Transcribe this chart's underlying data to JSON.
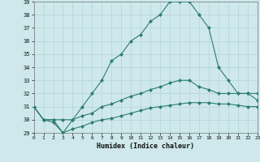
{
  "xlabel": "Humidex (Indice chaleur)",
  "x": [
    0,
    1,
    2,
    3,
    4,
    5,
    6,
    7,
    8,
    9,
    10,
    11,
    12,
    13,
    14,
    15,
    16,
    17,
    18,
    19,
    20,
    21,
    22,
    23
  ],
  "line_max": [
    31,
    30,
    30,
    29,
    30,
    31,
    32,
    33,
    34.5,
    35,
    36,
    36.5,
    37.5,
    38,
    39,
    39,
    39,
    38,
    37,
    34,
    33,
    32,
    32,
    32
  ],
  "line_mid": [
    31,
    30,
    30,
    30,
    30,
    30.3,
    30.5,
    31,
    31.2,
    31.5,
    31.8,
    32,
    32.3,
    32.5,
    32.8,
    33,
    33,
    32.5,
    32.3,
    32,
    32,
    32,
    32,
    31.5
  ],
  "line_min": [
    31,
    30,
    29.8,
    29,
    29.3,
    29.5,
    29.8,
    30,
    30.1,
    30.3,
    30.5,
    30.7,
    30.9,
    31,
    31.1,
    31.2,
    31.3,
    31.3,
    31.3,
    31.2,
    31.2,
    31.1,
    31,
    31
  ],
  "ylim": [
    29,
    39
  ],
  "xlim": [
    0,
    23
  ],
  "line_color": "#2d7d6f",
  "bg_color": "#cee8eb",
  "grid_color": "#b8d8db",
  "marker_size": 2.5
}
